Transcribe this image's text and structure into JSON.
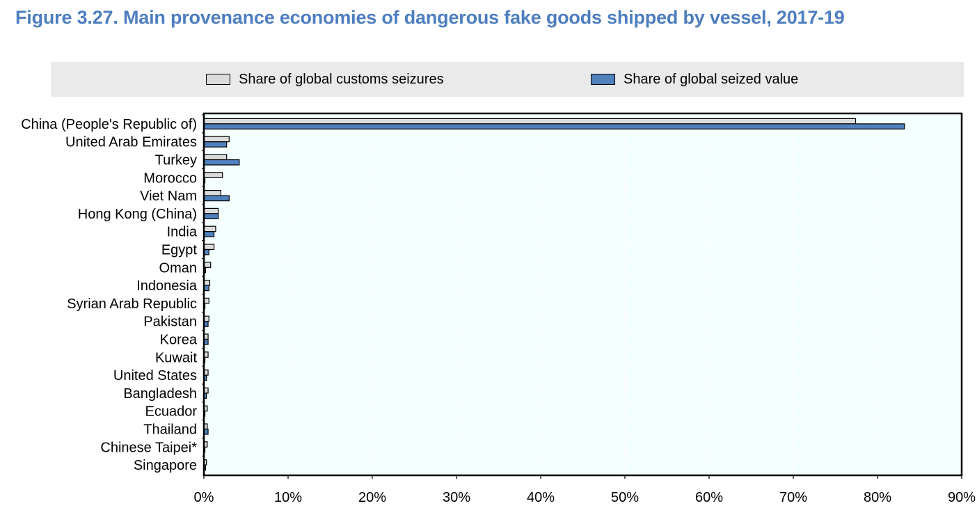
{
  "title": "Figure 3.27. Main provenance economies of dangerous fake goods shipped by vessel, 2017-19",
  "colors": {
    "series_seizures": "#dcdcdc",
    "series_value": "#4f81bd",
    "plot_background": "#f4ffff",
    "title": "#4d7ebf"
  },
  "chart_data": {
    "type": "bar",
    "orientation": "horizontal",
    "title": "Figure 3.27. Main provenance economies of dangerous fake goods shipped by vessel, 2017-19",
    "categories": [
      "China (People's Republic of)",
      "United Arab Emirates",
      "Turkey",
      "Morocco",
      "Viet Nam",
      "Hong Kong (China)",
      "India",
      "Egypt",
      "Oman",
      "Indonesia",
      "Syrian Arab Republic",
      "Pakistan",
      "Korea",
      "Kuwait",
      "United States",
      "Bangladesh",
      "Ecuador",
      "Thailand",
      "Chinese Taipei*",
      "Singapore"
    ],
    "series": [
      {
        "name": "Share of global customs seizures",
        "values": [
          77.4,
          3.0,
          2.7,
          2.2,
          2.0,
          1.7,
          1.4,
          1.2,
          0.8,
          0.7,
          0.6,
          0.6,
          0.5,
          0.5,
          0.5,
          0.5,
          0.4,
          0.4,
          0.4,
          0.3
        ]
      },
      {
        "name": "Share of global seized value",
        "values": [
          83.2,
          2.7,
          4.2,
          0.1,
          3.0,
          1.7,
          1.2,
          0.6,
          0.2,
          0.6,
          0.1,
          0.5,
          0.5,
          0.1,
          0.3,
          0.3,
          0.1,
          0.5,
          0.1,
          0.2
        ]
      }
    ],
    "xlim": [
      0,
      90
    ],
    "xticks": [
      0,
      10,
      20,
      30,
      40,
      50,
      60,
      70,
      80,
      90
    ],
    "xtick_labels": [
      "0%",
      "10%",
      "20%",
      "30%",
      "40%",
      "50%",
      "60%",
      "70%",
      "80%",
      "90%"
    ],
    "xlabel": "",
    "ylabel": "",
    "grid": "vertical",
    "legend_position": "top"
  }
}
